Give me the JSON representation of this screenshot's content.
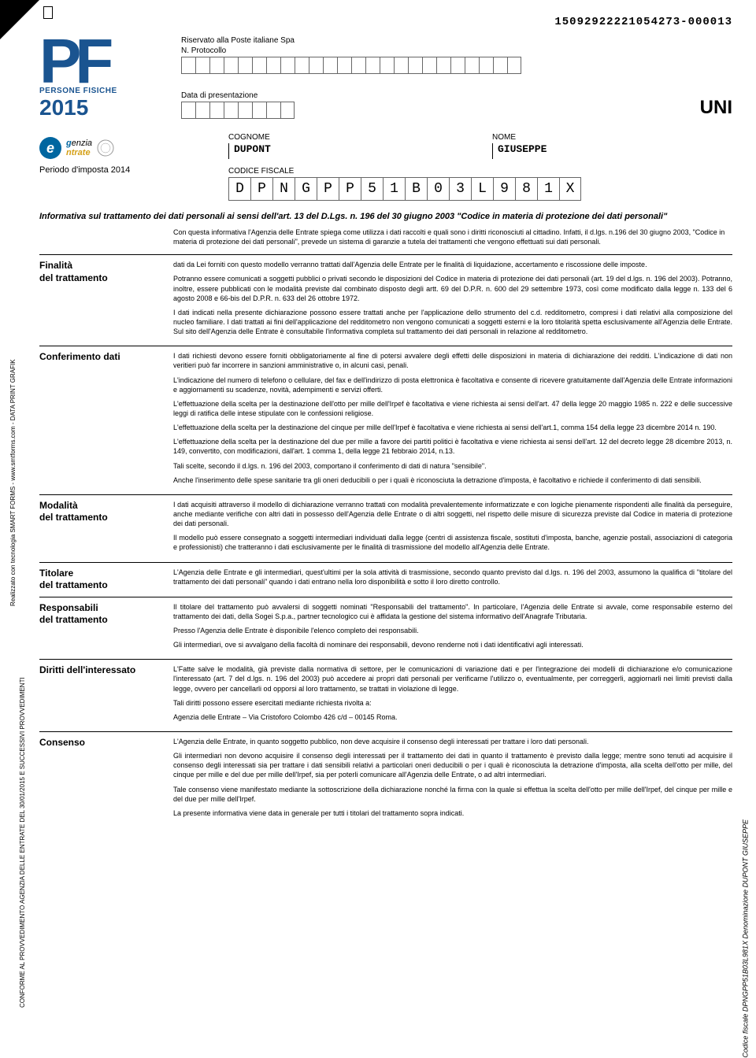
{
  "doc_id": "15092922221054273-000013",
  "header": {
    "riservato": "Riservato alla Poste italiane Spa",
    "n_protocollo_label": "N. Protocollo",
    "data_pres_label": "Data di presentazione",
    "uni": "UNI",
    "cognome_label": "COGNOME",
    "nome_label": "NOME",
    "cognome": "DUPONT",
    "nome": "GIUSEPPE",
    "periodo": "Periodo d'imposta 2014",
    "codice_fiscale_label": "CODICE FISCALE",
    "cf": [
      "D",
      "P",
      "N",
      "G",
      "P",
      "P",
      "5",
      "1",
      "B",
      "0",
      "3",
      "L",
      "9",
      "8",
      "1",
      "X"
    ],
    "protocollo_cells": 24,
    "data_cells": 8,
    "cf_cells": 16
  },
  "logo": {
    "pf": "PF",
    "sub": "PERSONE FISICHE",
    "year": "2015",
    "agenzia_g": "g",
    "agenzia_enzia": "enzia",
    "agenzia_ntrate": "ntrate"
  },
  "informativa_title": "Informativa sul trattamento dei dati personali ai sensi dell'art. 13 del D.Lgs. n. 196 del 30 giugno 2003 \"Codice in materia di protezione dei dati personali\"",
  "intro": "Con questa informativa l'Agenzia delle Entrate spiega come utilizza i dati raccolti e quali sono i diritti riconosciuti al cittadino. Infatti, il d.lgs. n.196 del 30 giugno 2003, \"Codice in materia di protezione dei dati personali\", prevede un sistema di garanzie a tutela dei trattamenti che vengono effettuati sui dati personali.",
  "sections": [
    {
      "label": "Finalità\ndel trattamento",
      "body": "dati da Lei forniti con questo modello verranno trattati dall'Agenzia delle Entrate per le finalità di liquidazione, accertamento e riscossione delle imposte.\nPotranno essere comunicati a soggetti pubblici o privati secondo le disposizioni del Codice in materia di protezione dei dati personali (art. 19 del d.lgs. n. 196 del 2003). Potranno, inoltre, essere pubblicati con le modalità previste dal combinato disposto degli artt. 69 del D.P.R. n. 600 del 29 settembre 1973, così come modificato dalla legge n. 133 del 6 agosto 2008 e 66-bis del D.P.R. n. 633 del 26 ottobre 1972.\nI dati indicati nella presente dichiarazione possono essere trattati anche per l'applicazione dello strumento del c.d. redditometro, compresi i dati relativi alla composizione del nucleo familiare. I dati trattati ai fini dell'applicazione del redditometro non vengono comunicati a soggetti esterni e la loro titolarità spetta esclusivamente all'Agenzia delle Entrate. Sul sito dell'Agenzia delle Entrate è consultabile l'informativa completa sul trattamento dei dati personali in relazione al redditometro."
    },
    {
      "label": "Conferimento dati",
      "body": "I dati richiesti devono essere forniti obbligatoriamente al fine di potersi avvalere degli effetti delle disposizioni in materia di dichiarazione dei redditi. L'indicazione di dati non veritieri può far incorrere in sanzioni amministrative o, in alcuni casi, penali.\nL'indicazione del numero di telefono o cellulare, del fax e dell'indirizzo di posta elettronica è facoltativa e consente di ricevere gratuitamente dall'Agenzia delle Entrate informazioni e aggiornamenti su scadenze, novità, adempimenti e servizi offerti.\nL'effettuazione della scelta per la destinazione dell'otto per mille dell'Irpef è facoltativa e viene richiesta ai sensi dell'art. 47 della legge 20 maggio 1985 n. 222 e delle successive leggi di ratifica delle intese stipulate con le confessioni religiose.\nL'effettuazione della scelta per la destinazione del cinque per mille dell'Irpef è facoltativa e viene richiesta ai sensi dell'art.1, comma 154 della legge 23 dicembre 2014 n. 190.\nL'effettuazione della scelta per la destinazione del due per mille a favore dei partiti politici è facoltativa e viene richiesta ai sensi dell'art. 12 del decreto legge 28 dicembre 2013, n. 149, convertito, con modificazioni, dall'art. 1 comma 1, della legge 21 febbraio 2014, n.13.\nTali scelte, secondo il d.lgs. n. 196 del 2003, comportano il conferimento di dati di natura \"sensibile\".\nAnche l'inserimento delle spese sanitarie tra gli oneri deducibili o per i quali è riconosciuta la detrazione d'imposta, è facoltativo e richiede il conferimento di dati sensibili."
    },
    {
      "label": "Modalità\ndel trattamento",
      "body": "I dati acquisiti attraverso il modello di dichiarazione verranno trattati con modalità prevalentemente informatizzate e con logiche pienamente rispondenti alle finalità da perseguire, anche mediante verifiche con altri dati in possesso dell'Agenzia delle Entrate o di altri soggetti, nel rispetto delle misure di sicurezza previste dal Codice in materia di protezione dei dati personali.\nIl modello può essere consegnato a soggetti intermediari individuati dalla legge (centri di assistenza fiscale, sostituti d'imposta, banche, agenzie postali, associazioni di categoria e professionisti) che tratteranno i dati esclusivamente per le finalità di trasmissione del modello all'Agenzia delle Entrate."
    },
    {
      "label": "Titolare\ndel trattamento",
      "body": "L'Agenzia delle Entrate e gli intermediari, quest'ultimi per la sola attività di trasmissione, secondo quanto previsto dal d.lgs. n. 196 del 2003, assumono la qualifica di \"titolare del trattamento dei dati personali\" quando i dati entrano nella loro disponibilità e sotto il loro diretto controllo."
    },
    {
      "label": "Responsabili\ndel trattamento",
      "body": "Il titolare del trattamento può avvalersi di soggetti nominati \"Responsabili del trattamento\". In particolare, l'Agenzia delle Entrate si avvale, come responsabile esterno del trattamento dei dati, della Sogei S.p.a., partner tecnologico cui è affidata la gestione del sistema informativo dell'Anagrafe Tributaria.\nPresso l'Agenzia delle Entrate è disponibile l'elenco completo dei responsabili.\nGli intermediari, ove si avvalgano della facoltà di nominare dei responsabili, devono renderne noti i dati identificativi agli interessati."
    },
    {
      "label": "Diritti dell'interessato",
      "body": "L'Fatte salve le modalità, già previste dalla normativa di settore, per le comunicazioni di variazione dati e per l'integrazione dei modelli di dichiarazione e/o comunicazione l'interessato (art. 7 del d.lgs. n. 196 del 2003) può accedere ai propri dati personali per verificarne l'utilizzo o, eventualmente, per correggerli, aggiornarli nei limiti previsti dalla legge, ovvero per cancellarli od opporsi al loro trattamento, se trattati in violazione di legge.\nTali diritti possono essere esercitati mediante richiesta rivolta a:\nAgenzia delle Entrate – Via Cristoforo Colombo 426 c/d – 00145 Roma."
    },
    {
      "label": "Consenso",
      "body": "L'Agenzia delle Entrate, in quanto soggetto pubblico, non deve acquisire il consenso degli interessati per trattare i loro dati personali.\nGli intermediari non devono acquisire il consenso degli interessati per il trattamento dei dati in quanto il trattamento è previsto dalla legge; mentre sono tenuti ad acquisire il consenso degli interessati sia per trattare i dati sensibili relativi a particolari oneri deducibili o per i quali è riconosciuta la detrazione d'imposta, alla scelta dell'otto per mille, del cinque per mille e del due per mille dell'Irpef, sia per poterli comunicare all'Agenzia delle Entrate, o ad altri intermediari.\nTale consenso viene manifestato mediante la sottoscrizione della dichiarazione nonché la firma con la quale si effettua la scelta dell'otto per mille dell'Irpef, del cinque per mille e del due per mille dell'Irpef.\nLa presente informativa viene data in generale per tutti i titolari del trattamento sopra indicati."
    }
  ],
  "side_left_1": "Realizzato con tecnologia SMART FORMS - www.smtforms.com - DATA PRINT GRAFIK",
  "side_left_2": "CONFORME AL PROVVEDIMENTO AGENZIA DELLE ENTRATE DEL 30/01/2015 E SUCCESSIVI PROVVEDIMENTI",
  "side_right": "Codice fiscale DPNGPP51B03L981X Denominazione DUPONT GIUSEPPE"
}
